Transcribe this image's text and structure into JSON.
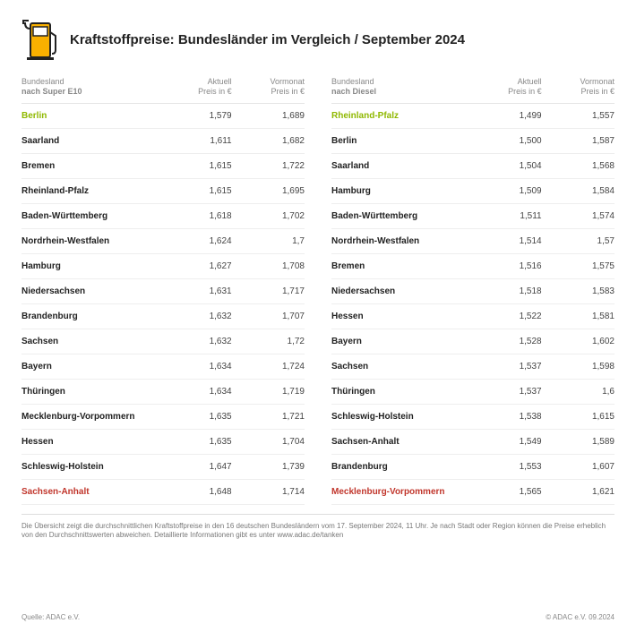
{
  "meta": {
    "title": "Kraftstoffpreise: Bundesländer im Vergleich / September 2024",
    "icon_colors": {
      "body": "#f9b000",
      "stroke": "#222222"
    },
    "highlight_colors": {
      "low": "#8fb800",
      "high": "#c1362c"
    },
    "text_color": "#333333",
    "header_text_color": "#888888",
    "border_color": "#e5e5e5",
    "background": "#ffffff",
    "font_sizes": {
      "title": 15,
      "header": 9,
      "row": 10,
      "footnote": 8
    }
  },
  "left_table": {
    "header": {
      "c1a": "Bundesland",
      "c1b": "nach Super E10",
      "c2a": "Aktuell",
      "c2b": "Preis in €",
      "c3a": "Vormonat",
      "c3b": "Preis in €"
    },
    "rows": [
      {
        "name": "Berlin",
        "aktuell": "1,579",
        "vormonat": "1,689",
        "hl": "green"
      },
      {
        "name": "Saarland",
        "aktuell": "1,611",
        "vormonat": "1,682",
        "hl": ""
      },
      {
        "name": "Bremen",
        "aktuell": "1,615",
        "vormonat": "1,722",
        "hl": ""
      },
      {
        "name": "Rheinland-Pfalz",
        "aktuell": "1,615",
        "vormonat": "1,695",
        "hl": ""
      },
      {
        "name": "Baden-Württemberg",
        "aktuell": "1,618",
        "vormonat": "1,702",
        "hl": ""
      },
      {
        "name": "Nordrhein-Westfalen",
        "aktuell": "1,624",
        "vormonat": "1,7",
        "hl": ""
      },
      {
        "name": "Hamburg",
        "aktuell": "1,627",
        "vormonat": "1,708",
        "hl": ""
      },
      {
        "name": "Niedersachsen",
        "aktuell": "1,631",
        "vormonat": "1,717",
        "hl": ""
      },
      {
        "name": "Brandenburg",
        "aktuell": "1,632",
        "vormonat": "1,707",
        "hl": ""
      },
      {
        "name": "Sachsen",
        "aktuell": "1,632",
        "vormonat": "1,72",
        "hl": ""
      },
      {
        "name": "Bayern",
        "aktuell": "1,634",
        "vormonat": "1,724",
        "hl": ""
      },
      {
        "name": "Thüringen",
        "aktuell": "1,634",
        "vormonat": "1,719",
        "hl": ""
      },
      {
        "name": "Mecklenburg-Vorpommern",
        "aktuell": "1,635",
        "vormonat": "1,721",
        "hl": ""
      },
      {
        "name": "Hessen",
        "aktuell": "1,635",
        "vormonat": "1,704",
        "hl": ""
      },
      {
        "name": "Schleswig-Holstein",
        "aktuell": "1,647",
        "vormonat": "1,739",
        "hl": ""
      },
      {
        "name": "Sachsen-Anhalt",
        "aktuell": "1,648",
        "vormonat": "1,714",
        "hl": "red"
      }
    ]
  },
  "right_table": {
    "header": {
      "c1a": "Bundesland",
      "c1b": "nach Diesel",
      "c2a": "Aktuell",
      "c2b": "Preis in €",
      "c3a": "Vormonat",
      "c3b": "Preis in €"
    },
    "rows": [
      {
        "name": "Rheinland-Pfalz",
        "aktuell": "1,499",
        "vormonat": "1,557",
        "hl": "green"
      },
      {
        "name": "Berlin",
        "aktuell": "1,500",
        "vormonat": "1,587",
        "hl": ""
      },
      {
        "name": "Saarland",
        "aktuell": "1,504",
        "vormonat": "1,568",
        "hl": ""
      },
      {
        "name": "Hamburg",
        "aktuell": "1,509",
        "vormonat": "1,584",
        "hl": ""
      },
      {
        "name": "Baden-Württemberg",
        "aktuell": "1,511",
        "vormonat": "1,574",
        "hl": ""
      },
      {
        "name": "Nordrhein-Westfalen",
        "aktuell": "1,514",
        "vormonat": "1,57",
        "hl": ""
      },
      {
        "name": "Bremen",
        "aktuell": "1,516",
        "vormonat": "1,575",
        "hl": ""
      },
      {
        "name": "Niedersachsen",
        "aktuell": "1,518",
        "vormonat": "1,583",
        "hl": ""
      },
      {
        "name": "Hessen",
        "aktuell": "1,522",
        "vormonat": "1,581",
        "hl": ""
      },
      {
        "name": "Bayern",
        "aktuell": "1,528",
        "vormonat": "1,602",
        "hl": ""
      },
      {
        "name": "Sachsen",
        "aktuell": "1,537",
        "vormonat": "1,598",
        "hl": ""
      },
      {
        "name": "Thüringen",
        "aktuell": "1,537",
        "vormonat": "1,6",
        "hl": ""
      },
      {
        "name": "Schleswig-Holstein",
        "aktuell": "1,538",
        "vormonat": "1,615",
        "hl": ""
      },
      {
        "name": "Sachsen-Anhalt",
        "aktuell": "1,549",
        "vormonat": "1,589",
        "hl": ""
      },
      {
        "name": "Brandenburg",
        "aktuell": "1,553",
        "vormonat": "1,607",
        "hl": ""
      },
      {
        "name": "Mecklenburg-Vorpommern",
        "aktuell": "1,565",
        "vormonat": "1,621",
        "hl": "red"
      }
    ]
  },
  "footnote": "Die Übersicht zeigt die durchschnittlichen Kraftstoffpreise in den 16 deutschen Bundesländern vom 17. September 2024, 11 Uhr. Je nach Stadt oder Region können die Preise erheblich von den Durchschnittswerten abweichen. Detaillierte Informationen gibt es unter www.adac.de/tanken",
  "source": "Quelle: ADAC e.V.",
  "copyright": "© ADAC e.V. 09.2024"
}
